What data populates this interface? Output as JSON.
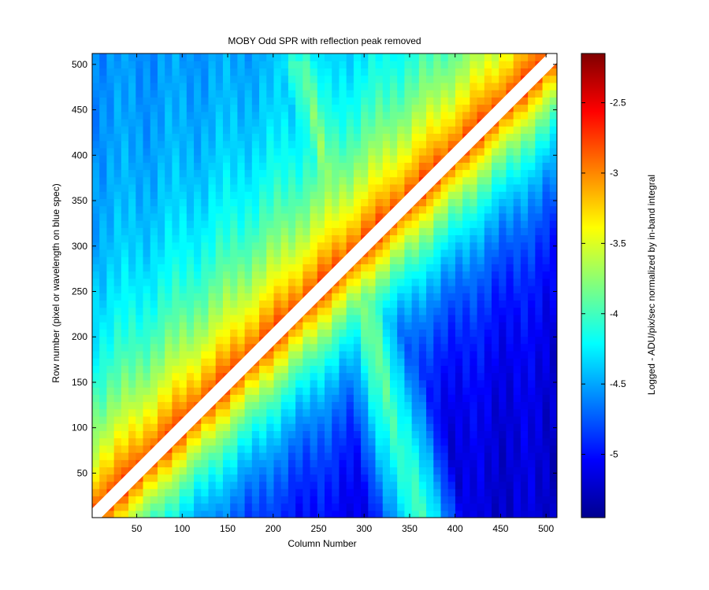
{
  "chart_data": {
    "type": "heatmap",
    "title": "MOBY Odd SPR with reflection peak removed",
    "xlabel": "Column Number",
    "ylabel": "Row number (pixel or wavelength on blue spec)",
    "xlim": [
      1,
      512
    ],
    "ylim": [
      1,
      512
    ],
    "x_ticks": [
      50,
      100,
      150,
      200,
      250,
      300,
      350,
      400,
      450,
      500
    ],
    "y_ticks": [
      50,
      100,
      150,
      200,
      250,
      300,
      350,
      400,
      450,
      500
    ],
    "colorbar": {
      "label": "Logged - ADU/pix/sec normalized by in-band integral",
      "colormap": "jet",
      "clim": [
        -5.45,
        -2.15
      ],
      "ticks": [
        -2.5,
        -3,
        -3.5,
        -4,
        -4.5,
        -5
      ]
    },
    "excluded_region": {
      "description": "reflection peak removed",
      "row_minus_column_range": [
        -10,
        10
      ]
    },
    "features": [
      {
        "name": "diagonal-peak",
        "value_max": -2.7
      },
      {
        "name": "secondary-band",
        "from": [
          230,
          500
        ],
        "to": [
          360,
          1
        ],
        "value": -3.7
      },
      {
        "name": "upper-left-background",
        "value": -4.6
      },
      {
        "name": "lower-right-background",
        "value": -5.2
      }
    ]
  }
}
